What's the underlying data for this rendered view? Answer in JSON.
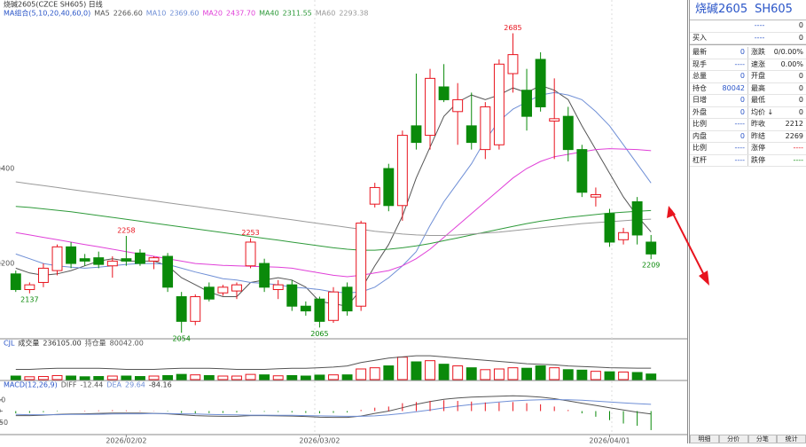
{
  "chart_data": [
    {
      "type": "candlestick",
      "title": "烧碱2605(CZCE SH605) 日线",
      "legend_title": "MA组合(5,10,20,40,60,0)",
      "up_color": "#e8141e",
      "down_color": "#0a8a0a",
      "ylim": [
        2045,
        2714
      ],
      "yticks": [
        2200,
        2400
      ],
      "open": [
        2178,
        2145,
        2160,
        2185,
        2235,
        2210,
        2212,
        2195,
        2210,
        2222,
        2205,
        2215,
        2130,
        2078,
        2150,
        2138,
        2142,
        2195,
        2200,
        2145,
        2155,
        2110,
        2125,
        2080,
        2150,
        2110,
        2325,
        2400,
        2322,
        2490,
        2470,
        2572,
        2520,
        2490,
        2440,
        2450,
        2600,
        2565,
        2630,
        2500,
        2510,
        2440,
        2340,
        2305,
        2250,
        2330,
        2245
      ],
      "high": [
        2185,
        2160,
        2200,
        2240,
        2245,
        2220,
        2225,
        2215,
        2258,
        2230,
        2215,
        2222,
        2140,
        2135,
        2160,
        2155,
        2160,
        2253,
        2210,
        2165,
        2165,
        2120,
        2130,
        2150,
        2160,
        2290,
        2370,
        2410,
        2480,
        2600,
        2610,
        2620,
        2580,
        2560,
        2540,
        2630,
        2685,
        2610,
        2645,
        2590,
        2530,
        2450,
        2360,
        2315,
        2275,
        2340,
        2260
      ],
      "low": [
        2140,
        2137,
        2150,
        2175,
        2190,
        2195,
        2190,
        2170,
        2195,
        2195,
        2188,
        2140,
        2054,
        2070,
        2120,
        2132,
        2125,
        2190,
        2140,
        2125,
        2100,
        2090,
        2065,
        2075,
        2090,
        2100,
        2318,
        2310,
        2290,
        2440,
        2440,
        2540,
        2450,
        2440,
        2420,
        2440,
        2560,
        2480,
        2520,
        2420,
        2415,
        2340,
        2320,
        2235,
        2240,
        2240,
        2209
      ],
      "close": [
        2145,
        2155,
        2190,
        2235,
        2200,
        2205,
        2198,
        2205,
        2205,
        2200,
        2212,
        2150,
        2078,
        2130,
        2125,
        2150,
        2155,
        2245,
        2150,
        2155,
        2110,
        2100,
        2078,
        2140,
        2100,
        2285,
        2360,
        2322,
        2470,
        2455,
        2590,
        2545,
        2545,
        2455,
        2530,
        2620,
        2640,
        2510,
        2530,
        2505,
        2440,
        2350,
        2345,
        2245,
        2265,
        2260,
        2220
      ],
      "annotations": [
        {
          "index": 8,
          "field": "high"
        },
        {
          "index": 17,
          "field": "high"
        },
        {
          "index": 36,
          "field": "high"
        },
        {
          "index": 1,
          "field": "low"
        },
        {
          "index": 12,
          "field": "low"
        },
        {
          "index": 22,
          "field": "low"
        },
        {
          "index": 46,
          "field": "low"
        }
      ],
      "series": [
        {
          "name": "MA5",
          "legend_value": "2266.60",
          "color": "#555555",
          "values": [
            2190,
            2180,
            2175,
            2178,
            2185,
            2195,
            2205,
            2210,
            2205,
            2205,
            2205,
            2195,
            2170,
            2155,
            2140,
            2130,
            2130,
            2160,
            2165,
            2170,
            2165,
            2150,
            2120,
            2115,
            2110,
            2145,
            2195,
            2240,
            2300,
            2380,
            2445,
            2510,
            2540,
            2555,
            2545,
            2555,
            2570,
            2560,
            2575,
            2565,
            2545,
            2490,
            2440,
            2390,
            2340,
            2300,
            2266.6
          ]
        },
        {
          "name": "MA10",
          "legend_value": "2369.60",
          "color": "#6f8fd6",
          "values": [
            2220,
            2210,
            2200,
            2195,
            2192,
            2190,
            2192,
            2195,
            2198,
            2200,
            2200,
            2198,
            2190,
            2182,
            2175,
            2168,
            2165,
            2160,
            2158,
            2155,
            2150,
            2148,
            2145,
            2140,
            2138,
            2140,
            2150,
            2170,
            2195,
            2225,
            2280,
            2330,
            2370,
            2410,
            2460,
            2500,
            2525,
            2540,
            2555,
            2560,
            2555,
            2545,
            2520,
            2490,
            2450,
            2410,
            2369.6
          ]
        },
        {
          "name": "MA20",
          "legend_value": "2437.70",
          "color": "#e040d8",
          "values": [
            2265,
            2260,
            2255,
            2250,
            2245,
            2240,
            2235,
            2230,
            2225,
            2220,
            2215,
            2210,
            2205,
            2200,
            2198,
            2196,
            2195,
            2194,
            2193,
            2192,
            2190,
            2185,
            2180,
            2175,
            2172,
            2175,
            2180,
            2185,
            2195,
            2210,
            2230,
            2255,
            2280,
            2305,
            2330,
            2355,
            2380,
            2400,
            2415,
            2425,
            2430,
            2435,
            2440,
            2442,
            2441,
            2440,
            2437.7
          ]
        },
        {
          "name": "MA40",
          "legend_value": "2311.55",
          "color": "#2e9a3a",
          "values": [
            2320,
            2318,
            2315,
            2312,
            2309,
            2305,
            2301,
            2297,
            2293,
            2289,
            2285,
            2281,
            2277,
            2273,
            2269,
            2265,
            2261,
            2257,
            2253,
            2249,
            2245,
            2241,
            2237,
            2233,
            2230,
            2228,
            2228,
            2230,
            2233,
            2237,
            2242,
            2248,
            2254,
            2260,
            2266,
            2272,
            2278,
            2284,
            2289,
            2293,
            2297,
            2300,
            2303,
            2306,
            2308,
            2310,
            2311.55
          ]
        },
        {
          "name": "MA60",
          "legend_value": "2293.38",
          "color": "#9a9a9a",
          "values": [
            2372,
            2368,
            2364,
            2360,
            2356,
            2352,
            2348,
            2344,
            2340,
            2336,
            2332,
            2328,
            2324,
            2320,
            2316,
            2312,
            2308,
            2304,
            2300,
            2296,
            2292,
            2288,
            2284,
            2280,
            2276,
            2272,
            2268,
            2265,
            2262,
            2260,
            2259,
            2259,
            2260,
            2262,
            2264,
            2266,
            2269,
            2272,
            2275,
            2278,
            2281,
            2284,
            2286,
            2288,
            2290,
            2292,
            2293.38
          ]
        }
      ]
    },
    {
      "type": "volume",
      "title": "CJL",
      "ylim": [
        0,
        1200000
      ],
      "y2lim": [
        70000,
        95000
      ],
      "series": [
        {
          "name": "成交量",
          "legend_value": "236105.00",
          "values": [
            150000,
            120000,
            130000,
            170000,
            150000,
            120000,
            130000,
            150000,
            150000,
            130000,
            150000,
            170000,
            220000,
            200000,
            170000,
            150000,
            150000,
            220000,
            200000,
            160000,
            170000,
            150000,
            190000,
            200000,
            200000,
            450000,
            500000,
            580000,
            950000,
            750000,
            800000,
            650000,
            580000,
            500000,
            420000,
            450000,
            500000,
            480000,
            580000,
            500000,
            420000,
            400000,
            350000,
            330000,
            320000,
            300000,
            236105
          ]
        },
        {
          "name": "持仓量",
          "legend_value": "80042.00",
          "axis": "y2",
          "color": "#555555",
          "values": [
            79000,
            79000,
            79500,
            80000,
            80000,
            80000,
            80000,
            79500,
            79000,
            79000,
            79000,
            79500,
            80000,
            80000,
            80000,
            79500,
            79000,
            79000,
            79000,
            79500,
            80000,
            80000,
            80500,
            81000,
            82000,
            85000,
            87000,
            89000,
            90000,
            91000,
            91000,
            90000,
            89000,
            88000,
            87000,
            86000,
            85000,
            84000,
            83500,
            83000,
            82000,
            81500,
            81000,
            80500,
            80200,
            80100,
            80042
          ]
        }
      ]
    },
    {
      "type": "macd",
      "title": "MACD(12,26,9)",
      "ylim": [
        -100,
        100
      ],
      "yticks": [
        -50,
        0,
        50
      ],
      "up_color": "#e8141e",
      "down_color": "#0a8a0a",
      "x_labels": [
        {
          "value": 8,
          "label": "2026/02/02"
        },
        {
          "value": 22,
          "label": "2026/03/02"
        },
        {
          "value": 43,
          "label": "2026/04/01"
        }
      ],
      "series": [
        {
          "name": "DIFF",
          "legend_value": "-12.44",
          "color": "#555555",
          "values": [
            -20,
            -20,
            -18,
            -15,
            -13,
            -12,
            -10,
            -9,
            -9,
            -9,
            -10,
            -12,
            -16,
            -20,
            -22,
            -23,
            -23,
            -20,
            -20,
            -21,
            -22,
            -24,
            -27,
            -28,
            -28,
            -22,
            -10,
            0,
            15,
            30,
            42,
            52,
            58,
            62,
            64,
            66,
            68,
            66,
            62,
            55,
            45,
            35,
            25,
            15,
            5,
            -5,
            -12.44
          ]
        },
        {
          "name": "DEA",
          "legend_value": "29.64",
          "color": "#6f8fd6",
          "values": [
            -15,
            -16,
            -16,
            -16,
            -15,
            -15,
            -14,
            -13,
            -12,
            -12,
            -11,
            -11,
            -12,
            -13,
            -15,
            -16,
            -17,
            -18,
            -18,
            -19,
            -19,
            -20,
            -21,
            -22,
            -23,
            -23,
            -21,
            -17,
            -11,
            -3,
            5,
            14,
            22,
            29,
            35,
            40,
            45,
            48,
            50,
            51,
            50,
            48,
            44,
            40,
            36,
            33,
            29.64
          ]
        },
        {
          "legend_value": "-84.16",
          "bars": true,
          "values": [
            -10,
            -8,
            -5,
            -2,
            0,
            2,
            3,
            4,
            3,
            2,
            1,
            -2,
            -8,
            -10,
            -9,
            -8,
            -6,
            -2,
            -3,
            -4,
            -6,
            -8,
            -10,
            -8,
            -6,
            5,
            15,
            20,
            35,
            40,
            45,
            48,
            45,
            42,
            38,
            38,
            40,
            35,
            30,
            20,
            5,
            -10,
            -25,
            -40,
            -55,
            -65,
            -84.16
          ]
        }
      ]
    }
  ],
  "quote_panel": {
    "title": "烧碱2605",
    "code": "SH605",
    "order_rows": [
      {
        "price": "----",
        "qty": "0"
      },
      {
        "label": "买入",
        "price": "----",
        "qty": "0"
      }
    ],
    "rows": [
      [
        [
          "最新",
          "0"
        ],
        [
          "涨跌",
          "0/0.00%"
        ]
      ],
      [
        [
          "现手",
          "----"
        ],
        [
          "速涨",
          "0.00%"
        ]
      ],
      [
        [
          "总量",
          "0"
        ],
        [
          "开盘",
          "0"
        ]
      ],
      [
        [
          "持仓",
          "80042"
        ],
        [
          "最高",
          "0"
        ]
      ],
      [
        [
          "日增",
          "0"
        ],
        [
          "最低",
          "0"
        ]
      ],
      [
        [
          "外盘",
          "0"
        ],
        [
          "均价 ↓",
          "0"
        ]
      ],
      [
        [
          "比例",
          "----"
        ],
        [
          "昨收",
          "2212"
        ]
      ],
      [
        [
          "内盘",
          "0"
        ],
        [
          "昨结",
          "2269"
        ]
      ],
      [
        [
          "比例",
          "----"
        ],
        [
          "涨停",
          "----"
        ]
      ],
      [
        [
          "杠杆",
          "----"
        ],
        [
          "跌停",
          "----"
        ]
      ]
    ],
    "tabs": [
      "明细",
      "分价",
      "分笔",
      "统计"
    ]
  }
}
